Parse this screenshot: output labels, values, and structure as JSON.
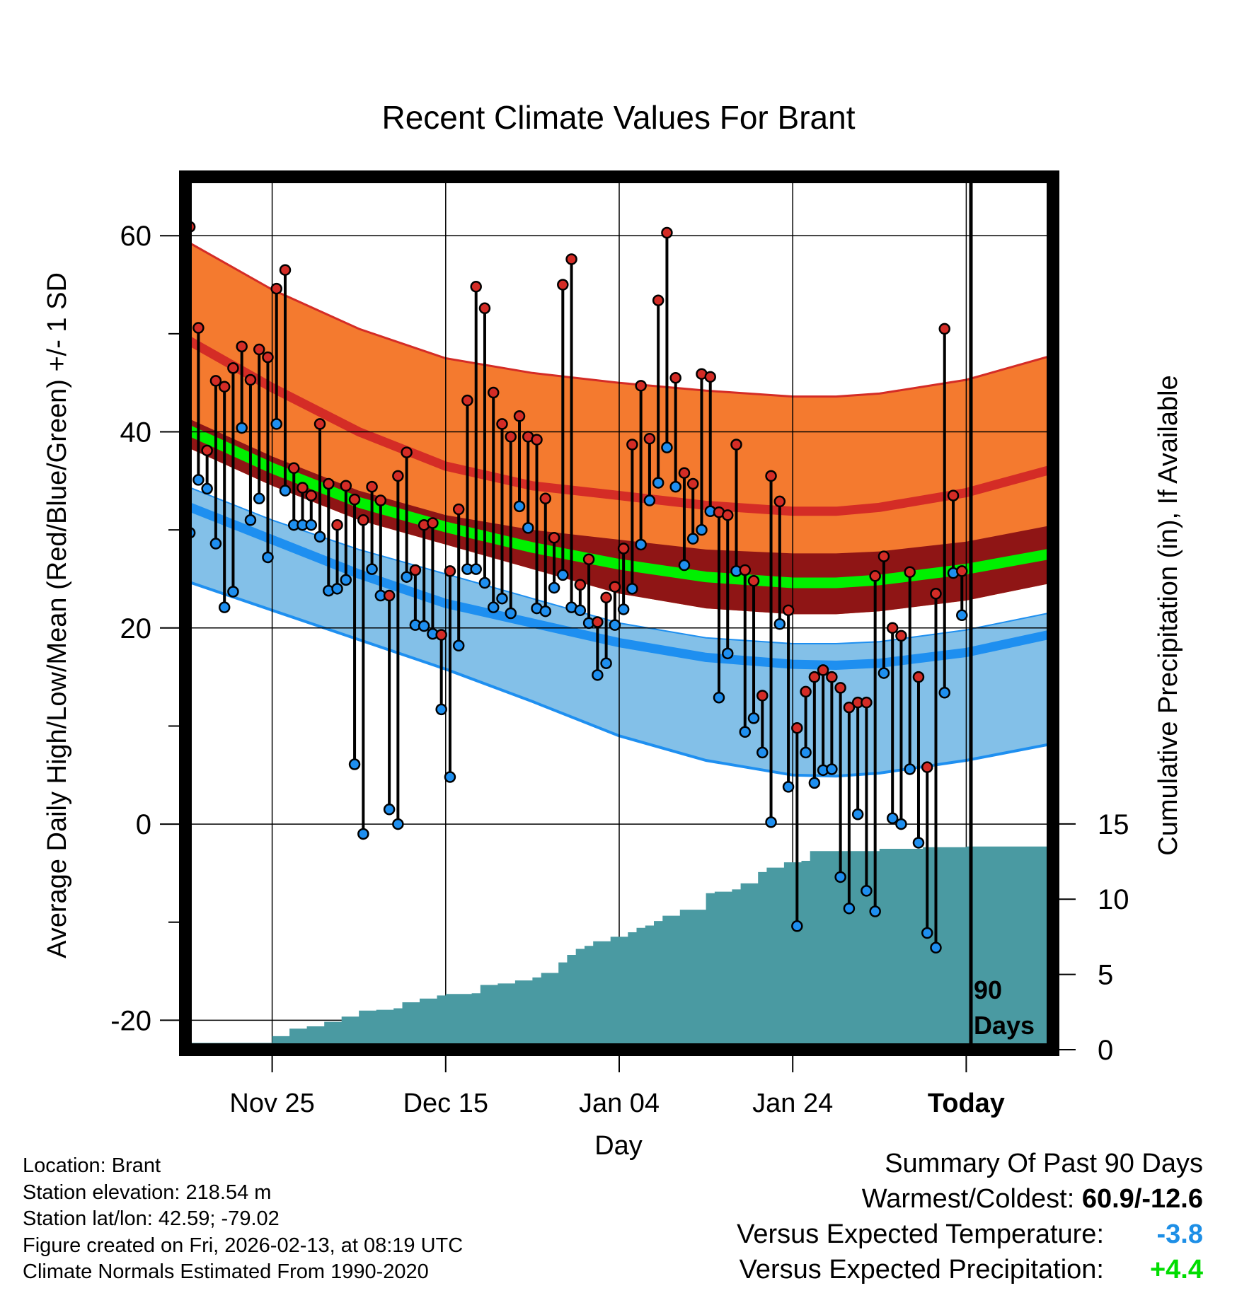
{
  "chart_data": {
    "type": "line",
    "title": "Recent Climate Values For Brant",
    "xlabel": "Day",
    "ylabel": "Average Daily High/Low/Mean (Red/Blue/Green) +/- 1 SD",
    "y2label": "Cumulative Precipitation (in), If Available",
    "ylim": [
      -23,
      66
    ],
    "y2lim": [
      0,
      58
    ],
    "xlim": [
      0,
      100
    ],
    "y_ticks": [
      60,
      40,
      20,
      0,
      -20
    ],
    "y2_ticks": [
      15,
      10,
      5,
      0
    ],
    "x_ticks": [
      {
        "day": 10,
        "label": "Nov 25"
      },
      {
        "day": 30,
        "label": "Dec 15"
      },
      {
        "day": 50,
        "label": "Jan 04"
      },
      {
        "day": 70,
        "label": "Jan 24"
      },
      {
        "day": 90,
        "label": "Today"
      }
    ],
    "period_marker": {
      "day": 90,
      "label_1": "90",
      "label_2": "Days"
    },
    "normals": {
      "x": [
        0,
        10,
        20,
        30,
        40,
        50,
        60,
        70,
        75,
        80,
        90,
        100
      ],
      "high_upper": [
        59.5,
        54.5,
        50.5,
        47.5,
        46.0,
        45.0,
        44.2,
        43.6,
        43.6,
        43.9,
        45.3,
        47.8
      ],
      "high_mean": [
        49.5,
        44.5,
        40.0,
        36.5,
        34.5,
        33.5,
        32.5,
        31.9,
        31.9,
        32.3,
        33.8,
        36.2
      ],
      "mean_upper": [
        41.5,
        37.5,
        34.0,
        31.5,
        30.0,
        29.0,
        28.0,
        27.6,
        27.6,
        27.8,
        28.8,
        30.5
      ],
      "mean_mean": [
        40.3,
        36.3,
        32.8,
        30.3,
        28.2,
        26.5,
        25.2,
        24.6,
        24.6,
        24.9,
        26.0,
        27.6
      ],
      "mean_lower": [
        38.5,
        34.5,
        31.0,
        28.5,
        26.0,
        23.5,
        22.0,
        21.4,
        21.4,
        21.7,
        22.8,
        24.6
      ],
      "low_upper": [
        34.5,
        31.0,
        28.0,
        25.5,
        23.0,
        20.5,
        19.0,
        18.4,
        18.4,
        18.6,
        19.8,
        21.6
      ],
      "low_mean": [
        32.5,
        29.0,
        25.5,
        22.5,
        20.5,
        18.5,
        17.0,
        16.3,
        16.2,
        16.4,
        17.5,
        19.4
      ],
      "low_lower": [
        24.8,
        21.8,
        18.8,
        15.8,
        12.5,
        9.0,
        6.5,
        5.0,
        4.9,
        5.2,
        6.5,
        8.2
      ]
    },
    "series": [
      {
        "name": "Daily High",
        "values": [
          60.9,
          50.6,
          38.1,
          45.2,
          44.6,
          46.5,
          48.7,
          45.3,
          48.4,
          47.6,
          54.6,
          56.5,
          36.3,
          34.3,
          33.5,
          40.8,
          34.7,
          30.5,
          34.5,
          33.1,
          31.0,
          34.4,
          33.0,
          23.3,
          35.5,
          37.9,
          25.9,
          30.5,
          30.7,
          19.3,
          25.8,
          32.1,
          43.2,
          54.8,
          52.6,
          44.0,
          40.8,
          39.5,
          41.6,
          39.5,
          39.2,
          33.2,
          29.2,
          55.0,
          57.6,
          24.4,
          27.0,
          20.6,
          23.1,
          24.2,
          28.1,
          38.7,
          44.7,
          39.3,
          53.4,
          60.3,
          45.5,
          35.8,
          34.7,
          45.9,
          45.6,
          31.8,
          31.5,
          38.7,
          25.9,
          24.8,
          13.1,
          35.5,
          32.9,
          21.8,
          9.8,
          13.5,
          15.0,
          15.7,
          15.0,
          13.9,
          11.9,
          12.4,
          12.4,
          25.3,
          27.3,
          20.0,
          19.2,
          25.7,
          15.0,
          5.8,
          23.5,
          50.5,
          33.5,
          25.8
        ]
      },
      {
        "name": "Daily Low",
        "values": [
          29.7,
          35.1,
          34.2,
          28.6,
          22.1,
          23.7,
          40.4,
          31.0,
          33.2,
          27.2,
          40.8,
          34.0,
          30.5,
          30.5,
          30.5,
          29.3,
          23.8,
          24.0,
          24.9,
          6.1,
          -1.0,
          26.0,
          23.3,
          1.5,
          0.0,
          25.2,
          20.3,
          20.2,
          19.4,
          11.7,
          4.8,
          18.2,
          26.0,
          26.0,
          24.6,
          22.1,
          23.0,
          21.5,
          32.4,
          30.2,
          22.0,
          21.7,
          24.1,
          25.4,
          22.1,
          21.8,
          20.5,
          15.2,
          16.4,
          20.3,
          21.9,
          24.0,
          28.5,
          33.0,
          34.8,
          38.4,
          34.4,
          26.4,
          29.1,
          30.0,
          31.9,
          12.9,
          17.4,
          25.8,
          9.4,
          10.8,
          7.3,
          0.2,
          20.4,
          3.8,
          -10.4,
          7.3,
          4.2,
          5.5,
          5.6,
          -5.4,
          -8.6,
          1.0,
          -6.8,
          -8.9,
          15.4,
          0.6,
          0.0,
          5.6,
          -1.9,
          -11.1,
          -12.6,
          13.4,
          25.6,
          21.3
        ]
      },
      {
        "name": "Cumulative Precipitation",
        "x": [
          0,
          9,
          10,
          12,
          14,
          16,
          18,
          20,
          22,
          24,
          25,
          27,
          29,
          30,
          33,
          34,
          36,
          38,
          40,
          41,
          43,
          44,
          45,
          46,
          47,
          49,
          51,
          52,
          53,
          54,
          55,
          57,
          60,
          61,
          63,
          64,
          66,
          67,
          69,
          71,
          72,
          80,
          85,
          90,
          100
        ],
        "values": [
          0.45,
          0.45,
          0.9,
          1.4,
          1.55,
          1.85,
          2.2,
          2.6,
          2.65,
          2.75,
          3.15,
          3.4,
          3.6,
          3.7,
          3.75,
          4.3,
          4.4,
          4.6,
          4.8,
          5.1,
          5.8,
          6.3,
          6.7,
          6.9,
          7.2,
          7.5,
          7.8,
          8.1,
          8.25,
          8.55,
          8.9,
          9.3,
          10.4,
          10.5,
          10.65,
          11.05,
          11.8,
          12.1,
          12.45,
          12.55,
          13.2,
          13.35,
          13.45,
          13.5,
          13.5
        ]
      }
    ]
  },
  "footer": {
    "location": "Location: Brant",
    "elevation": "Station elevation: 218.54 m",
    "latlon": "Station lat/lon: 42.59; -79.02",
    "created": "Figure created on Fri, 2026-02-13, at 08:19 UTC",
    "normals": "Climate Normals Estimated From 1990-2020"
  },
  "summary": {
    "heading": "Summary Of Past 90 Days",
    "warm_cold_label": "Warmest/Coldest:",
    "warm_cold_value": "60.9/-12.6",
    "temp_label": "Versus Expected Temperature:",
    "temp_value": "-3.8",
    "temp_color": "#1e8fe6",
    "precip_label": "Versus Expected Precipitation:",
    "precip_value": "+4.4",
    "precip_color": "#00dd00"
  },
  "colors": {
    "high_band": "#f47a2f",
    "high_line": "#d42c26",
    "mean_band": "#8f1515",
    "mean_line": "#00f000",
    "low_band": "#83c0e8",
    "low_line": "#1e8ff0",
    "precip": "#4a9aa2",
    "high_dot": "#d42c26",
    "low_dot": "#1e8ff0"
  }
}
